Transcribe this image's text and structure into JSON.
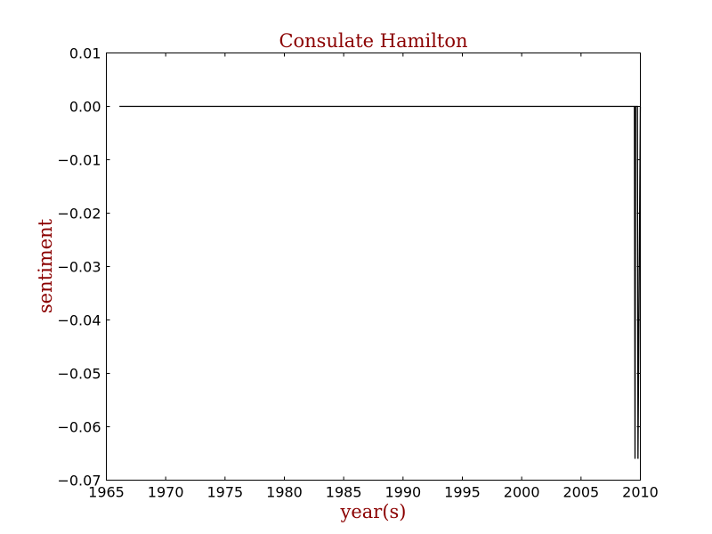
{
  "chart_data": {
    "type": "line",
    "title": "Consulate Hamilton",
    "xlabel": "year(s)",
    "ylabel": "sentiment",
    "xlim": [
      1965,
      2010
    ],
    "ylim": [
      -0.07,
      0.01
    ],
    "xticks": [
      1965,
      1970,
      1975,
      1980,
      1985,
      1990,
      1995,
      2000,
      2005,
      2010
    ],
    "xtick_labels": [
      "1965",
      "1970",
      "1975",
      "1980",
      "1985",
      "1990",
      "1995",
      "2000",
      "2005",
      "2010"
    ],
    "yticks": [
      0.01,
      0.0,
      -0.01,
      -0.02,
      -0.03,
      -0.04,
      -0.05,
      -0.06,
      -0.07
    ],
    "ytick_labels": [
      "0.01",
      "0.00",
      "−0.01",
      "−0.02",
      "−0.03",
      "−0.04",
      "−0.05",
      "−0.06",
      "−0.07"
    ],
    "grid": false,
    "colors": {
      "line": "#000000",
      "title": "#8b0000",
      "axis_label": "#8b0000"
    },
    "series": [
      {
        "x": [
          1966.1,
          2009.5,
          2009.55,
          2009.6,
          2009.75,
          2009.8,
          2010.0
        ],
        "y": [
          0.0,
          0.0,
          -0.066,
          0.0,
          0.0,
          -0.066,
          0.0
        ]
      }
    ]
  }
}
